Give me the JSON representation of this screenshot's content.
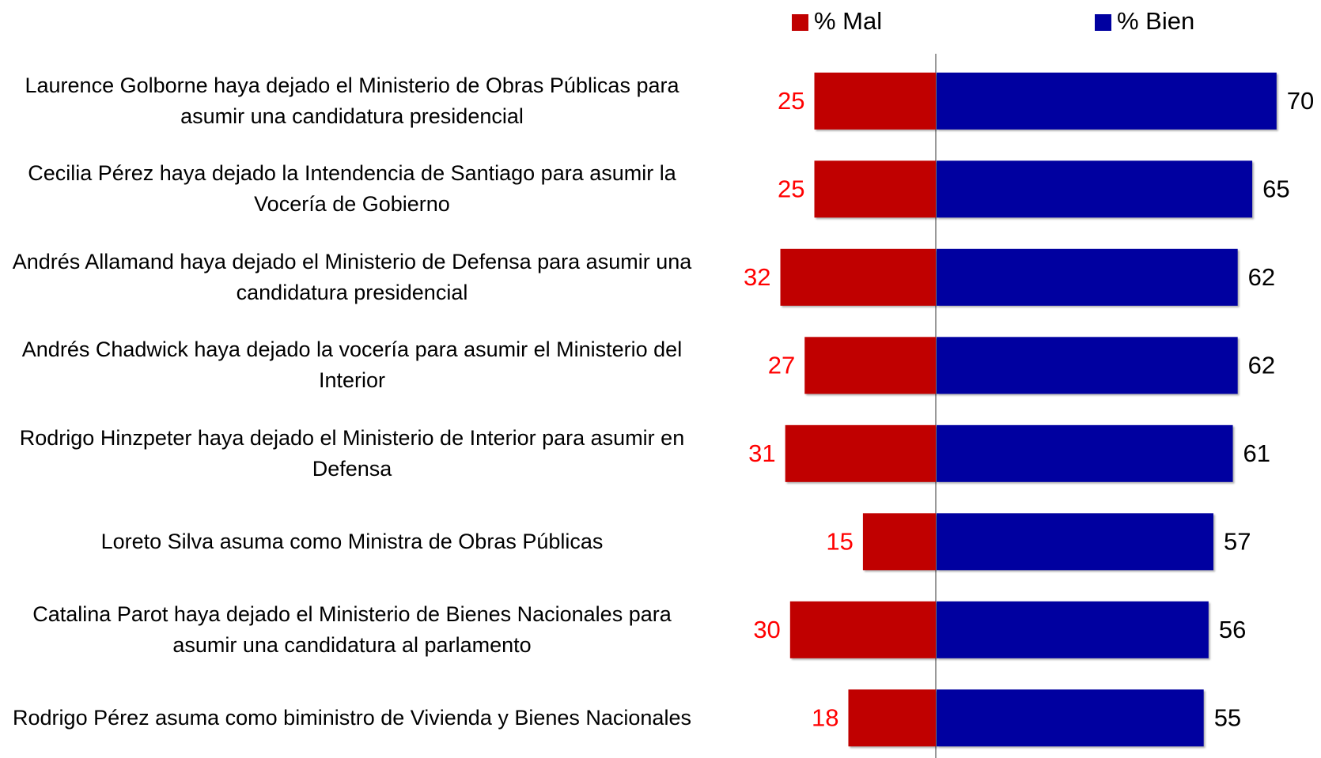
{
  "chart_data": {
    "type": "diverging-bar",
    "categories": [
      "Laurence Golborne haya dejado el Ministerio de Obras Públicas para asumir una candidatura presidencial",
      "Cecilia Pérez haya dejado la Intendencia de Santiago para asumir la Vocería de Gobierno",
      "Andrés Allamand haya dejado el Ministerio de Defensa para asumir una candidatura presidencial",
      "Andrés Chadwick haya dejado la vocería para asumir el Ministerio del Interior",
      "Rodrigo Hinzpeter haya dejado el Ministerio de Interior para asumir en Defensa",
      "Loreto Silva asuma como Ministra de Obras Públicas",
      "Catalina Parot haya dejado el Ministerio de Bienes Nacionales para asumir una candidatura al parlamento",
      "Rodrigo Pérez asuma como biministro de Vivienda y Bienes Nacionales"
    ],
    "series": [
      {
        "name": "% Mal",
        "color": "#c00000",
        "label_color": "#ff0000",
        "values": [
          25,
          25,
          32,
          27,
          31,
          15,
          30,
          18
        ]
      },
      {
        "name": "% Bien",
        "color": "#0000a0",
        "label_color": "#000000",
        "values": [
          70,
          65,
          62,
          62,
          61,
          57,
          56,
          55
        ]
      }
    ]
  }
}
